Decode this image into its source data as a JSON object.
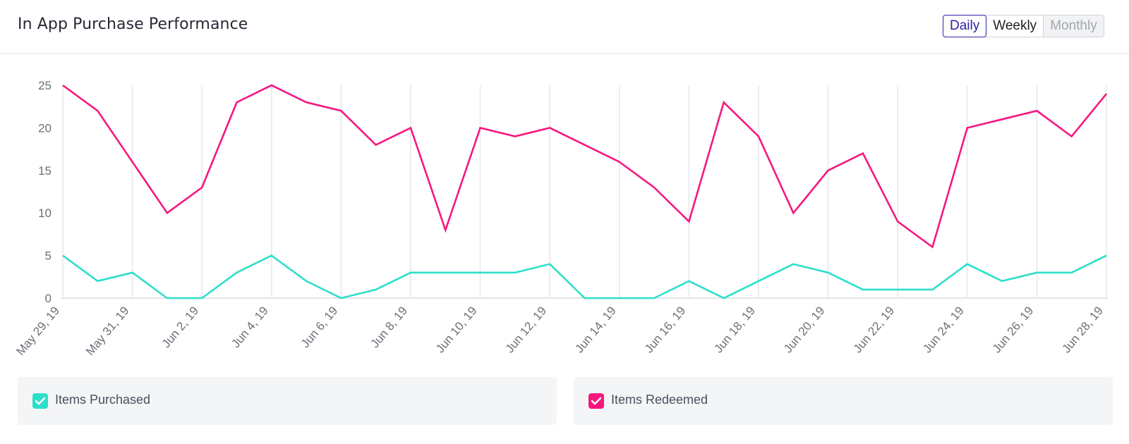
{
  "header": {
    "title": "In App Purchase Performance",
    "toggle": [
      {
        "label": "Daily",
        "state": "active"
      },
      {
        "label": "Weekly",
        "state": "normal"
      },
      {
        "label": "Monthly",
        "state": "disabled"
      }
    ]
  },
  "chart_data": {
    "type": "line",
    "x": [
      "May 29, 19",
      "May 30, 19",
      "May 31, 19",
      "Jun 1, 19",
      "Jun 2, 19",
      "Jun 3, 19",
      "Jun 4, 19",
      "Jun 5, 19",
      "Jun 6, 19",
      "Jun 7, 19",
      "Jun 8, 19",
      "Jun 9, 19",
      "Jun 10, 19",
      "Jun 11, 19",
      "Jun 12, 19",
      "Jun 13, 19",
      "Jun 14, 19",
      "Jun 15, 19",
      "Jun 16, 19",
      "Jun 17, 19",
      "Jun 18, 19",
      "Jun 19, 19",
      "Jun 20, 19",
      "Jun 21, 19",
      "Jun 22, 19",
      "Jun 23, 19",
      "Jun 24, 19",
      "Jun 25, 19",
      "Jun 26, 19",
      "Jun 27, 19",
      "Jun 28, 19"
    ],
    "x_tick_labels": [
      "May 29, 19",
      "May 31, 19",
      "Jun 2, 19",
      "Jun 4, 19",
      "Jun 6, 19",
      "Jun 8, 19",
      "Jun 10, 19",
      "Jun 12, 19",
      "Jun 14, 19",
      "Jun 16, 19",
      "Jun 18, 19",
      "Jun 20, 19",
      "Jun 22, 19",
      "Jun 24, 19",
      "Jun 26, 19",
      "Jun 28, 19"
    ],
    "y_ticks": [
      0,
      5,
      10,
      15,
      20,
      25
    ],
    "ylim": [
      0,
      25
    ],
    "grid": "vertical",
    "legend_position": "bottom",
    "series": [
      {
        "name": "Items Purchased",
        "color": "#2ddfcb",
        "values": [
          5,
          2,
          3,
          0,
          0,
          3,
          5,
          2,
          0,
          1,
          3,
          3,
          3,
          3,
          4,
          0,
          0,
          0,
          2,
          0,
          2,
          4,
          3,
          1,
          1,
          1,
          4,
          2,
          3,
          3,
          5
        ]
      },
      {
        "name": "Items Redeemed",
        "color": "#f5187e",
        "values": [
          25,
          22,
          16,
          10,
          13,
          23,
          25,
          23,
          22,
          18,
          20,
          8,
          20,
          19,
          20,
          18,
          16,
          13,
          9,
          23,
          19,
          10,
          15,
          17,
          9,
          6,
          20,
          21,
          22,
          19,
          24
        ]
      }
    ]
  },
  "legend": [
    {
      "label": "Items Purchased",
      "checked": true,
      "color": "#2ddfcb"
    },
    {
      "label": "Items Redeemed",
      "checked": true,
      "color": "#f5187e"
    }
  ]
}
